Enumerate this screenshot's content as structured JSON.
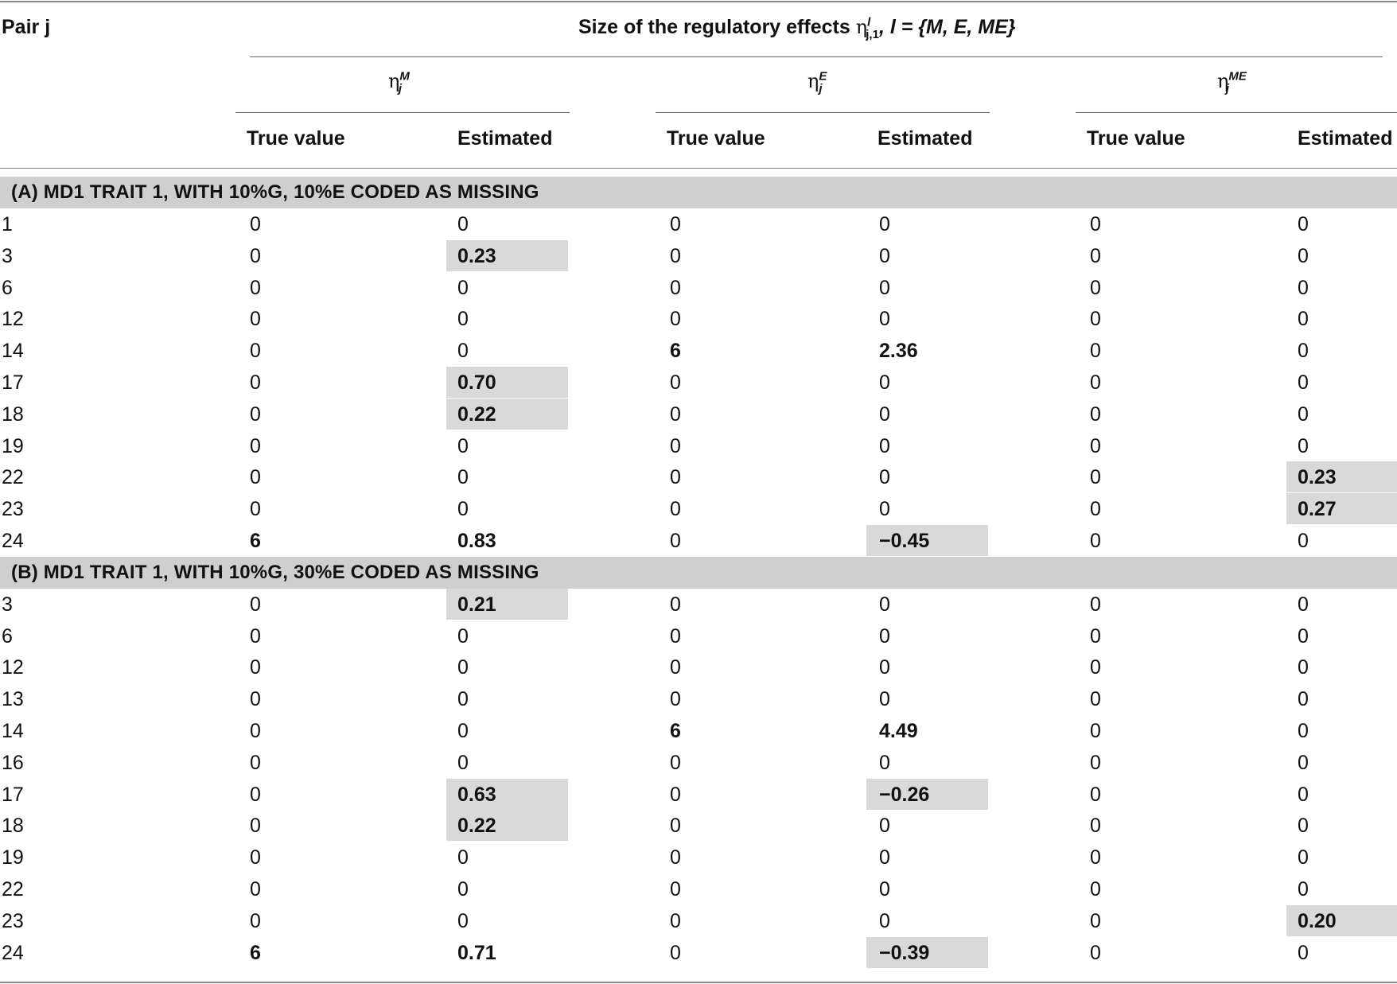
{
  "header": {
    "pair_label": "Pair j",
    "title_prefix": "Size of the regulatory effects ",
    "title_symbol": "η",
    "title_sup": "l",
    "title_sub": "j,1",
    "title_suffix": ", l = {M, E, ME}",
    "groups": [
      {
        "symbol": "η",
        "sup": "M",
        "sub": "j"
      },
      {
        "symbol": "η",
        "sup": "E",
        "sub": "j"
      },
      {
        "symbol": "η",
        "sup": "ME",
        "sub": "j"
      }
    ],
    "sub_columns": [
      "True value",
      "Estimated",
      "True value",
      "Estimated",
      "True value",
      "Estimated"
    ]
  },
  "sections": [
    {
      "label": "(A) MD1 TRAIT 1, WITH 10%G, 10%E CODED AS MISSING",
      "rows": [
        {
          "pair": "1",
          "cells": [
            "0",
            "0",
            "0",
            "0",
            "0",
            "0"
          ],
          "bold": [],
          "shaded": []
        },
        {
          "pair": "3",
          "cells": [
            "0",
            "0.23",
            "0",
            "0",
            "0",
            "0"
          ],
          "bold": [
            1
          ],
          "shaded": [
            1
          ]
        },
        {
          "pair": "6",
          "cells": [
            "0",
            "0",
            "0",
            "0",
            "0",
            "0"
          ],
          "bold": [],
          "shaded": []
        },
        {
          "pair": "12",
          "cells": [
            "0",
            "0",
            "0",
            "0",
            "0",
            "0"
          ],
          "bold": [],
          "shaded": []
        },
        {
          "pair": "14",
          "cells": [
            "0",
            "0",
            "6",
            "2.36",
            "0",
            "0"
          ],
          "bold": [
            2,
            3
          ],
          "shaded": []
        },
        {
          "pair": "17",
          "cells": [
            "0",
            "0.70",
            "0",
            "0",
            "0",
            "0"
          ],
          "bold": [
            1
          ],
          "shaded": [
            1
          ]
        },
        {
          "pair": "18",
          "cells": [
            "0",
            "0.22",
            "0",
            "0",
            "0",
            "0"
          ],
          "bold": [
            1
          ],
          "shaded": [
            1
          ]
        },
        {
          "pair": "19",
          "cells": [
            "0",
            "0",
            "0",
            "0",
            "0",
            "0"
          ],
          "bold": [],
          "shaded": []
        },
        {
          "pair": "22",
          "cells": [
            "0",
            "0",
            "0",
            "0",
            "0",
            "0.23"
          ],
          "bold": [
            5
          ],
          "shaded": [
            5
          ]
        },
        {
          "pair": "23",
          "cells": [
            "0",
            "0",
            "0",
            "0",
            "0",
            "0.27"
          ],
          "bold": [
            5
          ],
          "shaded": [
            5
          ]
        },
        {
          "pair": "24",
          "cells": [
            "6",
            "0.83",
            "0",
            "−0.45",
            "0",
            "0"
          ],
          "bold": [
            0,
            1,
            3
          ],
          "shaded": [
            3
          ]
        }
      ]
    },
    {
      "label": "(B) MD1 TRAIT 1, WITH 10%G, 30%E CODED AS MISSING",
      "rows": [
        {
          "pair": "3",
          "cells": [
            "0",
            "0.21",
            "0",
            "0",
            "0",
            "0"
          ],
          "bold": [
            1
          ],
          "shaded": [
            1
          ]
        },
        {
          "pair": "6",
          "cells": [
            "0",
            "0",
            "0",
            "0",
            "0",
            "0"
          ],
          "bold": [],
          "shaded": []
        },
        {
          "pair": "12",
          "cells": [
            "0",
            "0",
            "0",
            "0",
            "0",
            "0"
          ],
          "bold": [],
          "shaded": []
        },
        {
          "pair": "13",
          "cells": [
            "0",
            "0",
            "0",
            "0",
            "0",
            "0"
          ],
          "bold": [],
          "shaded": []
        },
        {
          "pair": "14",
          "cells": [
            "0",
            "0",
            "6",
            "4.49",
            "0",
            "0"
          ],
          "bold": [
            2,
            3
          ],
          "shaded": []
        },
        {
          "pair": "16",
          "cells": [
            "0",
            "0",
            "0",
            "0",
            "0",
            "0"
          ],
          "bold": [],
          "shaded": []
        },
        {
          "pair": "17",
          "cells": [
            "0",
            "0.63",
            "0",
            "−0.26",
            "0",
            "0"
          ],
          "bold": [
            1,
            3
          ],
          "shaded": [
            1,
            3
          ]
        },
        {
          "pair": "18",
          "cells": [
            "0",
            "0.22",
            "0",
            "0",
            "0",
            "0"
          ],
          "bold": [
            1
          ],
          "shaded": [
            1
          ]
        },
        {
          "pair": "19",
          "cells": [
            "0",
            "0",
            "0",
            "0",
            "0",
            "0"
          ],
          "bold": [],
          "shaded": []
        },
        {
          "pair": "22",
          "cells": [
            "0",
            "0",
            "0",
            "0",
            "0",
            "0"
          ],
          "bold": [],
          "shaded": []
        },
        {
          "pair": "23",
          "cells": [
            "0",
            "0",
            "0",
            "0",
            "0",
            "0.20"
          ],
          "bold": [
            5
          ],
          "shaded": [
            5
          ]
        },
        {
          "pair": "24",
          "cells": [
            "6",
            "0.71",
            "0",
            "−0.39",
            "0",
            "0"
          ],
          "bold": [
            0,
            1,
            3
          ],
          "shaded": [
            3
          ]
        }
      ]
    }
  ]
}
